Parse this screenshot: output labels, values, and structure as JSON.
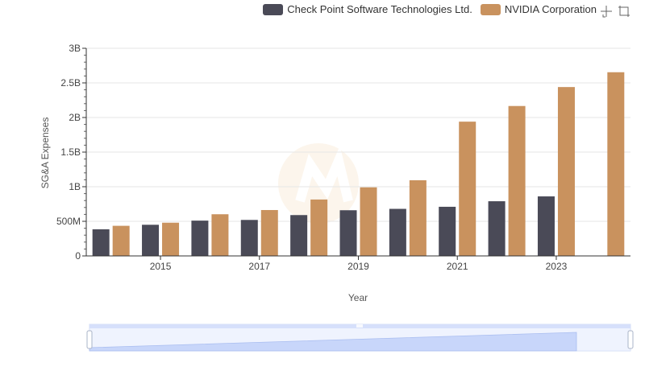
{
  "legend": {
    "series0": "Check Point Software Technologies Ltd.",
    "series1": "NVIDIA Corporation"
  },
  "toolbox": {
    "zoom_icon": "zoom-icon",
    "restore_icon": "restore-icon"
  },
  "colors": {
    "series0": "#4a4a57",
    "series1": "#c9925e",
    "grid": "#e6e6e6",
    "axis": "#333333",
    "zoom_fill": "#d6e0fb",
    "zoom_border": "#c2cdf2"
  },
  "chart_data": {
    "type": "bar",
    "xlabel": "Year",
    "ylabel": "SG&A Expenses",
    "ylim": [
      0,
      3000000000
    ],
    "y_ticks": [
      {
        "value": 0,
        "label": "0"
      },
      {
        "value": 500000000,
        "label": "500M"
      },
      {
        "value": 1000000000,
        "label": "1B"
      },
      {
        "value": 1500000000,
        "label": "1.5B"
      },
      {
        "value": 2000000000,
        "label": "2B"
      },
      {
        "value": 2500000000,
        "label": "2.5B"
      },
      {
        "value": 3000000000,
        "label": "3B"
      }
    ],
    "categories": [
      "2014",
      "2015",
      "2016",
      "2017",
      "2018",
      "2019",
      "2020",
      "2021",
      "2022",
      "2023",
      "2024"
    ],
    "x_tick_labels": [
      "2015",
      "2017",
      "2019",
      "2021",
      "2023"
    ],
    "grid": true,
    "legend_position": "top-right",
    "series": [
      {
        "name": "Check Point Software Technologies Ltd.",
        "values": [
          385000000,
          450000000,
          510000000,
          520000000,
          590000000,
          660000000,
          680000000,
          710000000,
          790000000,
          860000000,
          null
        ]
      },
      {
        "name": "NVIDIA Corporation",
        "values": [
          435000000,
          480000000,
          602000000,
          663000000,
          815000000,
          991000000,
          1093000000,
          1940000000,
          2166000000,
          2440000000,
          2654000000
        ]
      }
    ]
  }
}
